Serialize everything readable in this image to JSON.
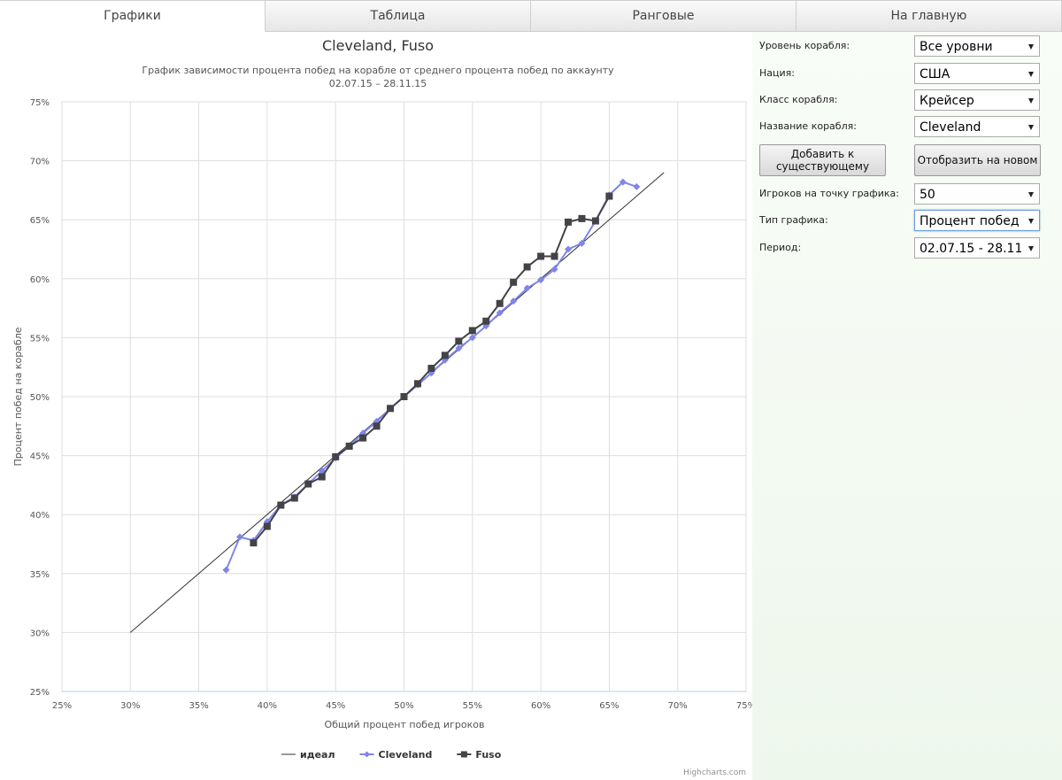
{
  "tabs": [
    "Графики",
    "Таблица",
    "Ранговые",
    "На главную"
  ],
  "controls": [
    {
      "label": "Уровень корабля:",
      "value": "Все уровни"
    },
    {
      "label": "Нация:",
      "value": "США"
    },
    {
      "label": "Класс корабля:",
      "value": "Крейсер"
    },
    {
      "label": "Название корабля:",
      "value": "Cleveland"
    },
    {
      "label": "Игроков на точку графика:",
      "value": "50"
    },
    {
      "label": "Тип графика:",
      "value": "Процент побед"
    },
    {
      "label": "Период:",
      "value": "02.07.15 - 28.11."
    }
  ],
  "buttons": [
    "Добавить к существующему",
    "Отобразить на новом"
  ],
  "credit": "Highcharts.com",
  "chart_data": {
    "type": "line",
    "title": "Cleveland, Fuso",
    "subtitle": [
      "График зависимости процента побед на корабле от среднего процента побед по аккаунту",
      "02.07.15 – 28.11.15"
    ],
    "x_label": "Общий процент побед игроков",
    "y_label": "Процент побед на корабле",
    "xlim": [
      25,
      75
    ],
    "ylim": [
      25,
      75
    ],
    "xticks": [
      {
        "value": 25,
        "label": "25%"
      },
      {
        "value": 30,
        "label": "30%"
      },
      {
        "value": 35,
        "label": "35%"
      },
      {
        "value": 40,
        "label": "40%"
      },
      {
        "value": 45,
        "label": "45%"
      },
      {
        "value": 50,
        "label": "50%"
      },
      {
        "value": 55,
        "label": "55%"
      },
      {
        "value": 60,
        "label": "60%"
      },
      {
        "value": 65,
        "label": "65%"
      },
      {
        "value": 70,
        "label": "70%"
      },
      {
        "value": 75,
        "label": "75%"
      }
    ],
    "yticks": [
      {
        "value": 25,
        "label": "25%"
      },
      {
        "value": 30,
        "label": "30%"
      },
      {
        "value": 35,
        "label": "35%"
      },
      {
        "value": 40,
        "label": "40%"
      },
      {
        "value": 45,
        "label": "45%"
      },
      {
        "value": 50,
        "label": "50%"
      },
      {
        "value": 55,
        "label": "55%"
      },
      {
        "value": 60,
        "label": "60%"
      },
      {
        "value": 65,
        "label": "65%"
      },
      {
        "value": 70,
        "label": "70%"
      },
      {
        "value": 75,
        "label": "75%"
      }
    ],
    "grid": true,
    "legend": "bottom",
    "series": [
      {
        "name": "идеал",
        "color": "#333333",
        "marker": "none",
        "x": [
          30,
          69
        ],
        "values": [
          30,
          69
        ]
      },
      {
        "name": "Cleveland",
        "color": "#8085e9",
        "marker": "diamond",
        "x": [
          37,
          38,
          39,
          40,
          41,
          42,
          43,
          44,
          45,
          46,
          47,
          48,
          49,
          50,
          51,
          52,
          53,
          54,
          55,
          56,
          57,
          58,
          59,
          60,
          61,
          62,
          63,
          64,
          65,
          66,
          67
        ],
        "values": [
          35.3,
          38.1,
          37.8,
          39.4,
          40.8,
          41.5,
          42.6,
          43.7,
          44.8,
          45.8,
          46.9,
          47.9,
          49.0,
          50.0,
          51.0,
          52.0,
          53.1,
          54.1,
          55.0,
          56.0,
          57.1,
          58.1,
          59.2,
          59.9,
          60.8,
          62.5,
          63.0,
          64.9,
          67.1,
          68.2,
          67.8
        ]
      },
      {
        "name": "Fuso",
        "color": "#434348",
        "marker": "square",
        "x": [
          39,
          40,
          41,
          42,
          43,
          44,
          45,
          46,
          47,
          48,
          49,
          50,
          51,
          52,
          53,
          54,
          55,
          56,
          57,
          58,
          59,
          60,
          61,
          62,
          63,
          64,
          65
        ],
        "values": [
          37.6,
          39.0,
          40.8,
          41.4,
          42.6,
          43.2,
          44.9,
          45.8,
          46.5,
          47.5,
          49.0,
          50.0,
          51.1,
          52.4,
          53.5,
          54.7,
          55.6,
          56.4,
          57.9,
          59.7,
          61.0,
          61.9,
          61.9,
          64.8,
          65.1,
          64.9,
          67.0
        ]
      }
    ]
  }
}
